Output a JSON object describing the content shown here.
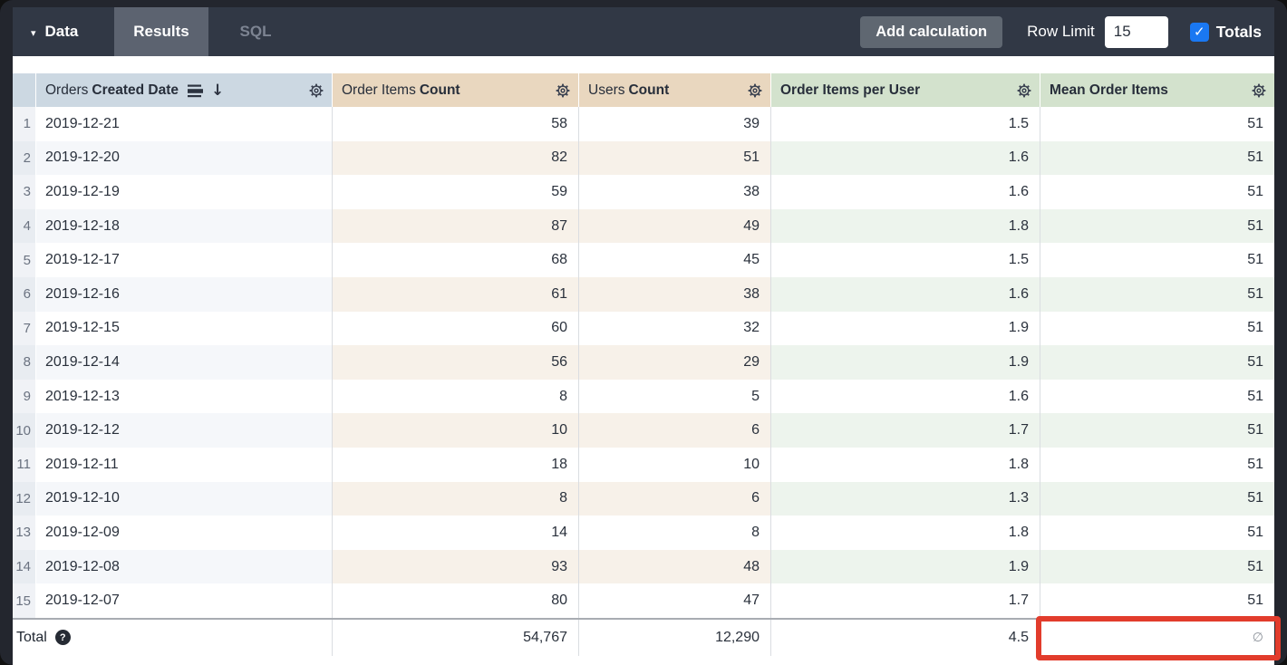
{
  "toolbar": {
    "data_label": "Data",
    "results_tab": "Results",
    "sql_tab": "SQL",
    "add_calculation_label": "Add calculation",
    "row_limit_label": "Row Limit",
    "row_limit_value": "15",
    "totals_label": "Totals",
    "totals_checked": true
  },
  "table": {
    "columns": [
      {
        "id": "orders_created_date",
        "label_plain": "Orders",
        "label_bold": "Created Date",
        "type": "dimension",
        "sorted": "desc"
      },
      {
        "id": "order_items_count",
        "label_plain": "Order Items",
        "label_bold": "Count",
        "type": "measure"
      },
      {
        "id": "users_count",
        "label_plain": "Users",
        "label_bold": "Count",
        "type": "measure"
      },
      {
        "id": "order_items_per_user",
        "label_plain": "",
        "label_bold": "Order Items per User",
        "type": "table_calculation"
      },
      {
        "id": "mean_order_items",
        "label_plain": "",
        "label_bold": "Mean Order Items",
        "type": "table_calculation"
      }
    ],
    "rows": [
      {
        "num": "1",
        "date": "2019-12-21",
        "order_items_count": "58",
        "users_count": "39",
        "order_items_per_user": "1.5",
        "mean_order_items": "51"
      },
      {
        "num": "2",
        "date": "2019-12-20",
        "order_items_count": "82",
        "users_count": "51",
        "order_items_per_user": "1.6",
        "mean_order_items": "51"
      },
      {
        "num": "3",
        "date": "2019-12-19",
        "order_items_count": "59",
        "users_count": "38",
        "order_items_per_user": "1.6",
        "mean_order_items": "51"
      },
      {
        "num": "4",
        "date": "2019-12-18",
        "order_items_count": "87",
        "users_count": "49",
        "order_items_per_user": "1.8",
        "mean_order_items": "51"
      },
      {
        "num": "5",
        "date": "2019-12-17",
        "order_items_count": "68",
        "users_count": "45",
        "order_items_per_user": "1.5",
        "mean_order_items": "51"
      },
      {
        "num": "6",
        "date": "2019-12-16",
        "order_items_count": "61",
        "users_count": "38",
        "order_items_per_user": "1.6",
        "mean_order_items": "51"
      },
      {
        "num": "7",
        "date": "2019-12-15",
        "order_items_count": "60",
        "users_count": "32",
        "order_items_per_user": "1.9",
        "mean_order_items": "51"
      },
      {
        "num": "8",
        "date": "2019-12-14",
        "order_items_count": "56",
        "users_count": "29",
        "order_items_per_user": "1.9",
        "mean_order_items": "51"
      },
      {
        "num": "9",
        "date": "2019-12-13",
        "order_items_count": "8",
        "users_count": "5",
        "order_items_per_user": "1.6",
        "mean_order_items": "51"
      },
      {
        "num": "10",
        "date": "2019-12-12",
        "order_items_count": "10",
        "users_count": "6",
        "order_items_per_user": "1.7",
        "mean_order_items": "51"
      },
      {
        "num": "11",
        "date": "2019-12-11",
        "order_items_count": "18",
        "users_count": "10",
        "order_items_per_user": "1.8",
        "mean_order_items": "51"
      },
      {
        "num": "12",
        "date": "2019-12-10",
        "order_items_count": "8",
        "users_count": "6",
        "order_items_per_user": "1.3",
        "mean_order_items": "51"
      },
      {
        "num": "13",
        "date": "2019-12-09",
        "order_items_count": "14",
        "users_count": "8",
        "order_items_per_user": "1.8",
        "mean_order_items": "51"
      },
      {
        "num": "14",
        "date": "2019-12-08",
        "order_items_count": "93",
        "users_count": "48",
        "order_items_per_user": "1.9",
        "mean_order_items": "51"
      },
      {
        "num": "15",
        "date": "2019-12-07",
        "order_items_count": "80",
        "users_count": "47",
        "order_items_per_user": "1.7",
        "mean_order_items": "51"
      }
    ],
    "total": {
      "label": "Total",
      "order_items_count": "54,767",
      "users_count": "12,290",
      "order_items_per_user": "4.5",
      "mean_order_items": "∅"
    }
  },
  "colors": {
    "frame": "#23262e",
    "topbar": "#313845",
    "active_tab": "#5c6370",
    "dimension_header": "#ccd8e2",
    "measure_header": "#e9d7bf",
    "calculation_header": "#d3e2cd",
    "checkbox_blue": "#1a78f2",
    "highlight_red": "#e23c2c"
  },
  "annotation": {
    "type": "highlight-rectangle",
    "target": "total-mean-order-items-cell"
  }
}
